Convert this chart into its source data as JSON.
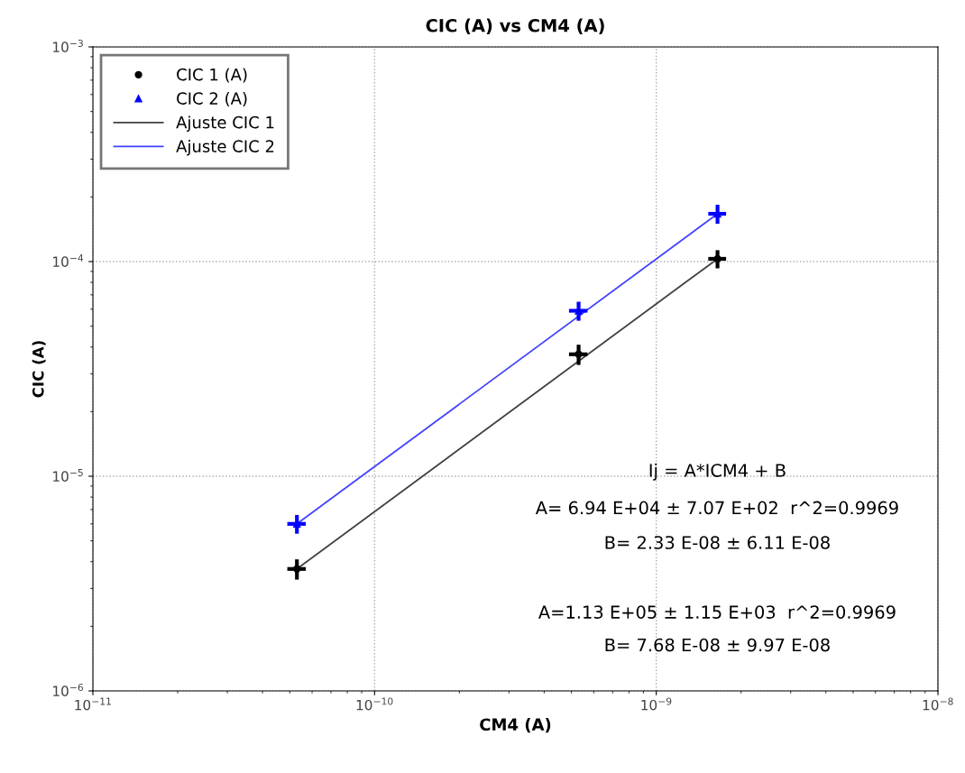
{
  "chart_data": {
    "type": "scatter",
    "title": "CIC (A) vs CM4 (A)",
    "xlabel": "CM4 (A)",
    "ylabel": "CIC (A)",
    "log": "xy",
    "xlim": [
      1e-11,
      1e-08
    ],
    "ylim": [
      1e-06,
      0.001
    ],
    "xticks": [
      {
        "value": 1e-11,
        "label": "10$^{−11}$"
      },
      {
        "value": 1e-10,
        "label": "10$^{−10}$"
      },
      {
        "value": 1e-09,
        "label": "10$^{−9}$"
      },
      {
        "value": 1e-08,
        "label": "10$^{−8}$"
      }
    ],
    "yticks": [
      {
        "value": 1e-06,
        "label": "10$^{−6}$"
      },
      {
        "value": 1e-05,
        "label": "10$^{−5}$"
      },
      {
        "value": 0.0001,
        "label": "10$^{−4}$"
      },
      {
        "value": 0.001,
        "label": "10$^{−3}$"
      }
    ],
    "grid": true,
    "legend": "top left",
    "series": [
      {
        "name": "CIC 1 (A)",
        "marker": "circle",
        "color": "#000000",
        "x": [
          5.3e-11,
          5.3e-10,
          1.65e-09
        ],
        "values": [
          3.7e-06,
          3.7e-05,
          0.000103
        ],
        "errors": [
          4e-07,
          4e-06,
          1e-05
        ],
        "xerrors": [
          4e-12,
          4e-11,
          1.2e-10
        ]
      },
      {
        "name": "CIC 2 (A)",
        "marker": "triangle",
        "color": "#0000ff",
        "x": [
          5.3e-11,
          5.3e-10,
          1.65e-09
        ],
        "values": [
          6e-06,
          5.9e-05,
          0.000167
        ],
        "errors": [
          6e-07,
          6e-06,
          1.7e-05
        ],
        "xerrors": [
          4e-12,
          4e-11,
          1.2e-10
        ]
      },
      {
        "name": "Ajuste CIC 1",
        "type": "line",
        "line_style": "solid",
        "color": "#404040",
        "x": [
          5.3e-11,
          1.65e-09
        ],
        "values": [
          3.7e-06,
          0.000103
        ]
      },
      {
        "name": "Ajuste CIC 2",
        "type": "line",
        "line_style": "solid",
        "color": "#4040ff",
        "x": [
          5.3e-11,
          1.65e-09
        ],
        "values": [
          6e-06,
          0.000167
        ]
      }
    ],
    "annotations": [
      "Ij = A*ICM4 + B",
      "A= 6.94 E+04 ± 7.07 E+02  r^2=0.9969",
      "B= 2.33 E-08 ± 6.11 E-08",
      "A=1.13 E+05 ± 1.15 E+03  r^2=0.9969",
      "B= 7.68 E-08 ± 9.97 E-08"
    ]
  }
}
